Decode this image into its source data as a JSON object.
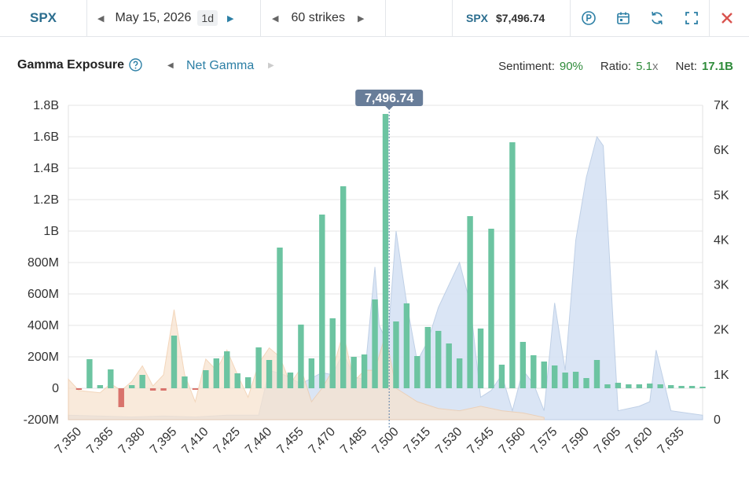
{
  "toolbar": {
    "symbol": "SPX",
    "date": "May 15, 2026",
    "expiry_badge": "1d",
    "strikes": "60 strikes",
    "price_symbol": "SPX",
    "price": "$7,496.74",
    "icons": [
      "parking-icon",
      "calendar-icon",
      "refresh-icon",
      "fullscreen-icon",
      "close-icon"
    ],
    "accent": "#2c7fa5",
    "close_color": "#d9534f"
  },
  "header": {
    "title": "Gamma Exposure",
    "mode": "Net Gamma",
    "sentiment_label": "Sentiment:",
    "sentiment_value": "90%",
    "ratio_label": "Ratio:",
    "ratio_value": "5.1",
    "ratio_unit": "x",
    "net_label": "Net:",
    "net_value": "17.1B"
  },
  "chart_data": {
    "type": "bar",
    "y_left": {
      "min": -200000000,
      "max": 1800000000,
      "ticks": [
        "-200M",
        "0",
        "200M",
        "400M",
        "600M",
        "800M",
        "1B",
        "1.2B",
        "1.4B",
        "1.6B",
        "1.8B"
      ]
    },
    "y_right": {
      "min": 0,
      "max": 7000,
      "ticks": [
        "0",
        "1K",
        "2K",
        "3K",
        "4K",
        "5K",
        "6K",
        "7K"
      ]
    },
    "x_min": 7345,
    "x_max": 7645,
    "x_ticks": [
      "7,350",
      "7,365",
      "7,380",
      "7,395",
      "7,410",
      "7,425",
      "7,440",
      "7,455",
      "7,470",
      "7,485",
      "7,500",
      "7,515",
      "7,530",
      "7,545",
      "7,560",
      "7,575",
      "7,590",
      "7,605",
      "7,620",
      "7,635"
    ],
    "current_price": 7496.74,
    "current_price_label": "7,496.74",
    "colors": {
      "positive": "#6cc4a1",
      "negative": "#d9736c",
      "call_area": "#d7e3f4",
      "put_area": "#f7e3cf",
      "overlap": "#d2d2d2",
      "price_line": "#5a7fa8",
      "price_tag": "#687d99"
    },
    "bars": {
      "strikes": [
        7350,
        7355,
        7360,
        7365,
        7370,
        7375,
        7380,
        7385,
        7390,
        7395,
        7400,
        7405,
        7410,
        7415,
        7420,
        7425,
        7430,
        7435,
        7440,
        7445,
        7450,
        7455,
        7460,
        7465,
        7470,
        7475,
        7480,
        7485,
        7490,
        7495,
        7500,
        7505,
        7510,
        7515,
        7520,
        7525,
        7530,
        7535,
        7540,
        7545,
        7550,
        7555,
        7560,
        7565,
        7570,
        7575,
        7580,
        7585,
        7590,
        7595,
        7600,
        7605,
        7610,
        7615,
        7620,
        7625,
        7630,
        7635,
        7640,
        7645
      ],
      "values": [
        -10000000,
        185000000,
        20000000,
        120000000,
        -120000000,
        20000000,
        85000000,
        -15000000,
        -15000000,
        335000000,
        75000000,
        -10000000,
        115000000,
        190000000,
        235000000,
        95000000,
        70000000,
        260000000,
        180000000,
        895000000,
        100000000,
        405000000,
        190000000,
        1105000000,
        445000000,
        1285000000,
        200000000,
        215000000,
        565000000,
        1745000000,
        425000000,
        540000000,
        205000000,
        390000000,
        365000000,
        285000000,
        190000000,
        1095000000,
        380000000,
        1015000000,
        150000000,
        1565000000,
        295000000,
        210000000,
        170000000,
        145000000,
        100000000,
        105000000,
        65000000,
        180000000,
        25000000,
        35000000,
        25000000,
        25000000,
        30000000,
        25000000,
        20000000,
        15000000,
        15000000,
        10000000
      ]
    },
    "call_oi": {
      "x": [
        7345,
        7360,
        7375,
        7390,
        7405,
        7420,
        7435,
        7440,
        7447,
        7455,
        7465,
        7470,
        7475,
        7480,
        7485,
        7490,
        7492,
        7496,
        7500,
        7505,
        7510,
        7515,
        7520,
        7525,
        7530,
        7535,
        7540,
        7545,
        7550,
        7555,
        7560,
        7565,
        7570,
        7575,
        7580,
        7585,
        7590,
        7595,
        7598,
        7605,
        7615,
        7620,
        7623,
        7630,
        7645
      ],
      "y": [
        100,
        80,
        60,
        80,
        60,
        100,
        100,
        1100,
        1000,
        800,
        1050,
        1000,
        1500,
        950,
        900,
        3400,
        2100,
        1700,
        4200,
        2600,
        1300,
        1750,
        2500,
        3000,
        3500,
        2600,
        500,
        650,
        1000,
        200,
        1100,
        800,
        200,
        2600,
        1100,
        4000,
        5400,
        6300,
        6100,
        200,
        300,
        400,
        1550,
        200,
        100
      ]
    },
    "put_oi": {
      "x": [
        7345,
        7350,
        7360,
        7365,
        7370,
        7375,
        7380,
        7385,
        7390,
        7395,
        7400,
        7405,
        7410,
        7415,
        7420,
        7425,
        7430,
        7435,
        7440,
        7445,
        7450,
        7455,
        7460,
        7465,
        7470,
        7475,
        7480,
        7485,
        7490,
        7495,
        7500,
        7510,
        7520,
        7530,
        7540,
        7550,
        7560,
        7570
      ],
      "y": [
        900,
        650,
        600,
        800,
        650,
        850,
        1200,
        750,
        1000,
        2450,
        1000,
        400,
        1350,
        1100,
        1550,
        1000,
        500,
        1250,
        1600,
        1400,
        800,
        1150,
        400,
        700,
        1100,
        1950,
        850,
        1100,
        1100,
        1900,
        700,
        400,
        250,
        200,
        300,
        200,
        150,
        50
      ]
    }
  }
}
